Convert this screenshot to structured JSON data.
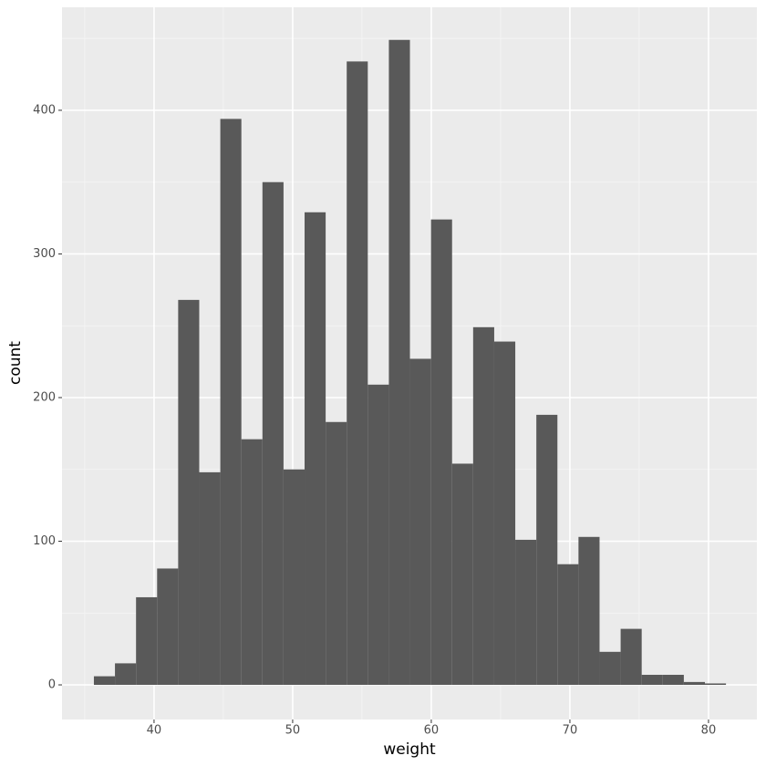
{
  "chart_data": {
    "type": "histogram",
    "x_label": "weight",
    "y_label": "count",
    "color": "#595959",
    "bins": [
      35.66,
      37.18,
      38.7,
      40.22,
      41.74,
      43.26,
      44.78,
      46.3,
      47.82,
      49.34,
      50.86,
      52.38,
      53.9,
      55.42,
      56.94,
      58.46,
      59.98,
      61.5,
      63.02,
      64.54,
      66.06,
      67.58,
      69.1,
      70.62,
      72.14,
      73.66,
      75.18,
      76.7,
      78.22,
      79.74,
      81.26
    ],
    "values": [
      6,
      15,
      61,
      81,
      268,
      148,
      394,
      171,
      350,
      150,
      329,
      183,
      434,
      209,
      449,
      227,
      324,
      154,
      249,
      239,
      101,
      188,
      84,
      103,
      23,
      39,
      7,
      7,
      2,
      1
    ],
    "xlim": [
      33.36,
      83.49
    ],
    "ylim": [
      -24.1,
      471.7
    ],
    "xticks": [
      40,
      50,
      60,
      70,
      80
    ],
    "yticks": [
      0,
      100,
      200,
      300,
      400
    ],
    "grid": true
  }
}
